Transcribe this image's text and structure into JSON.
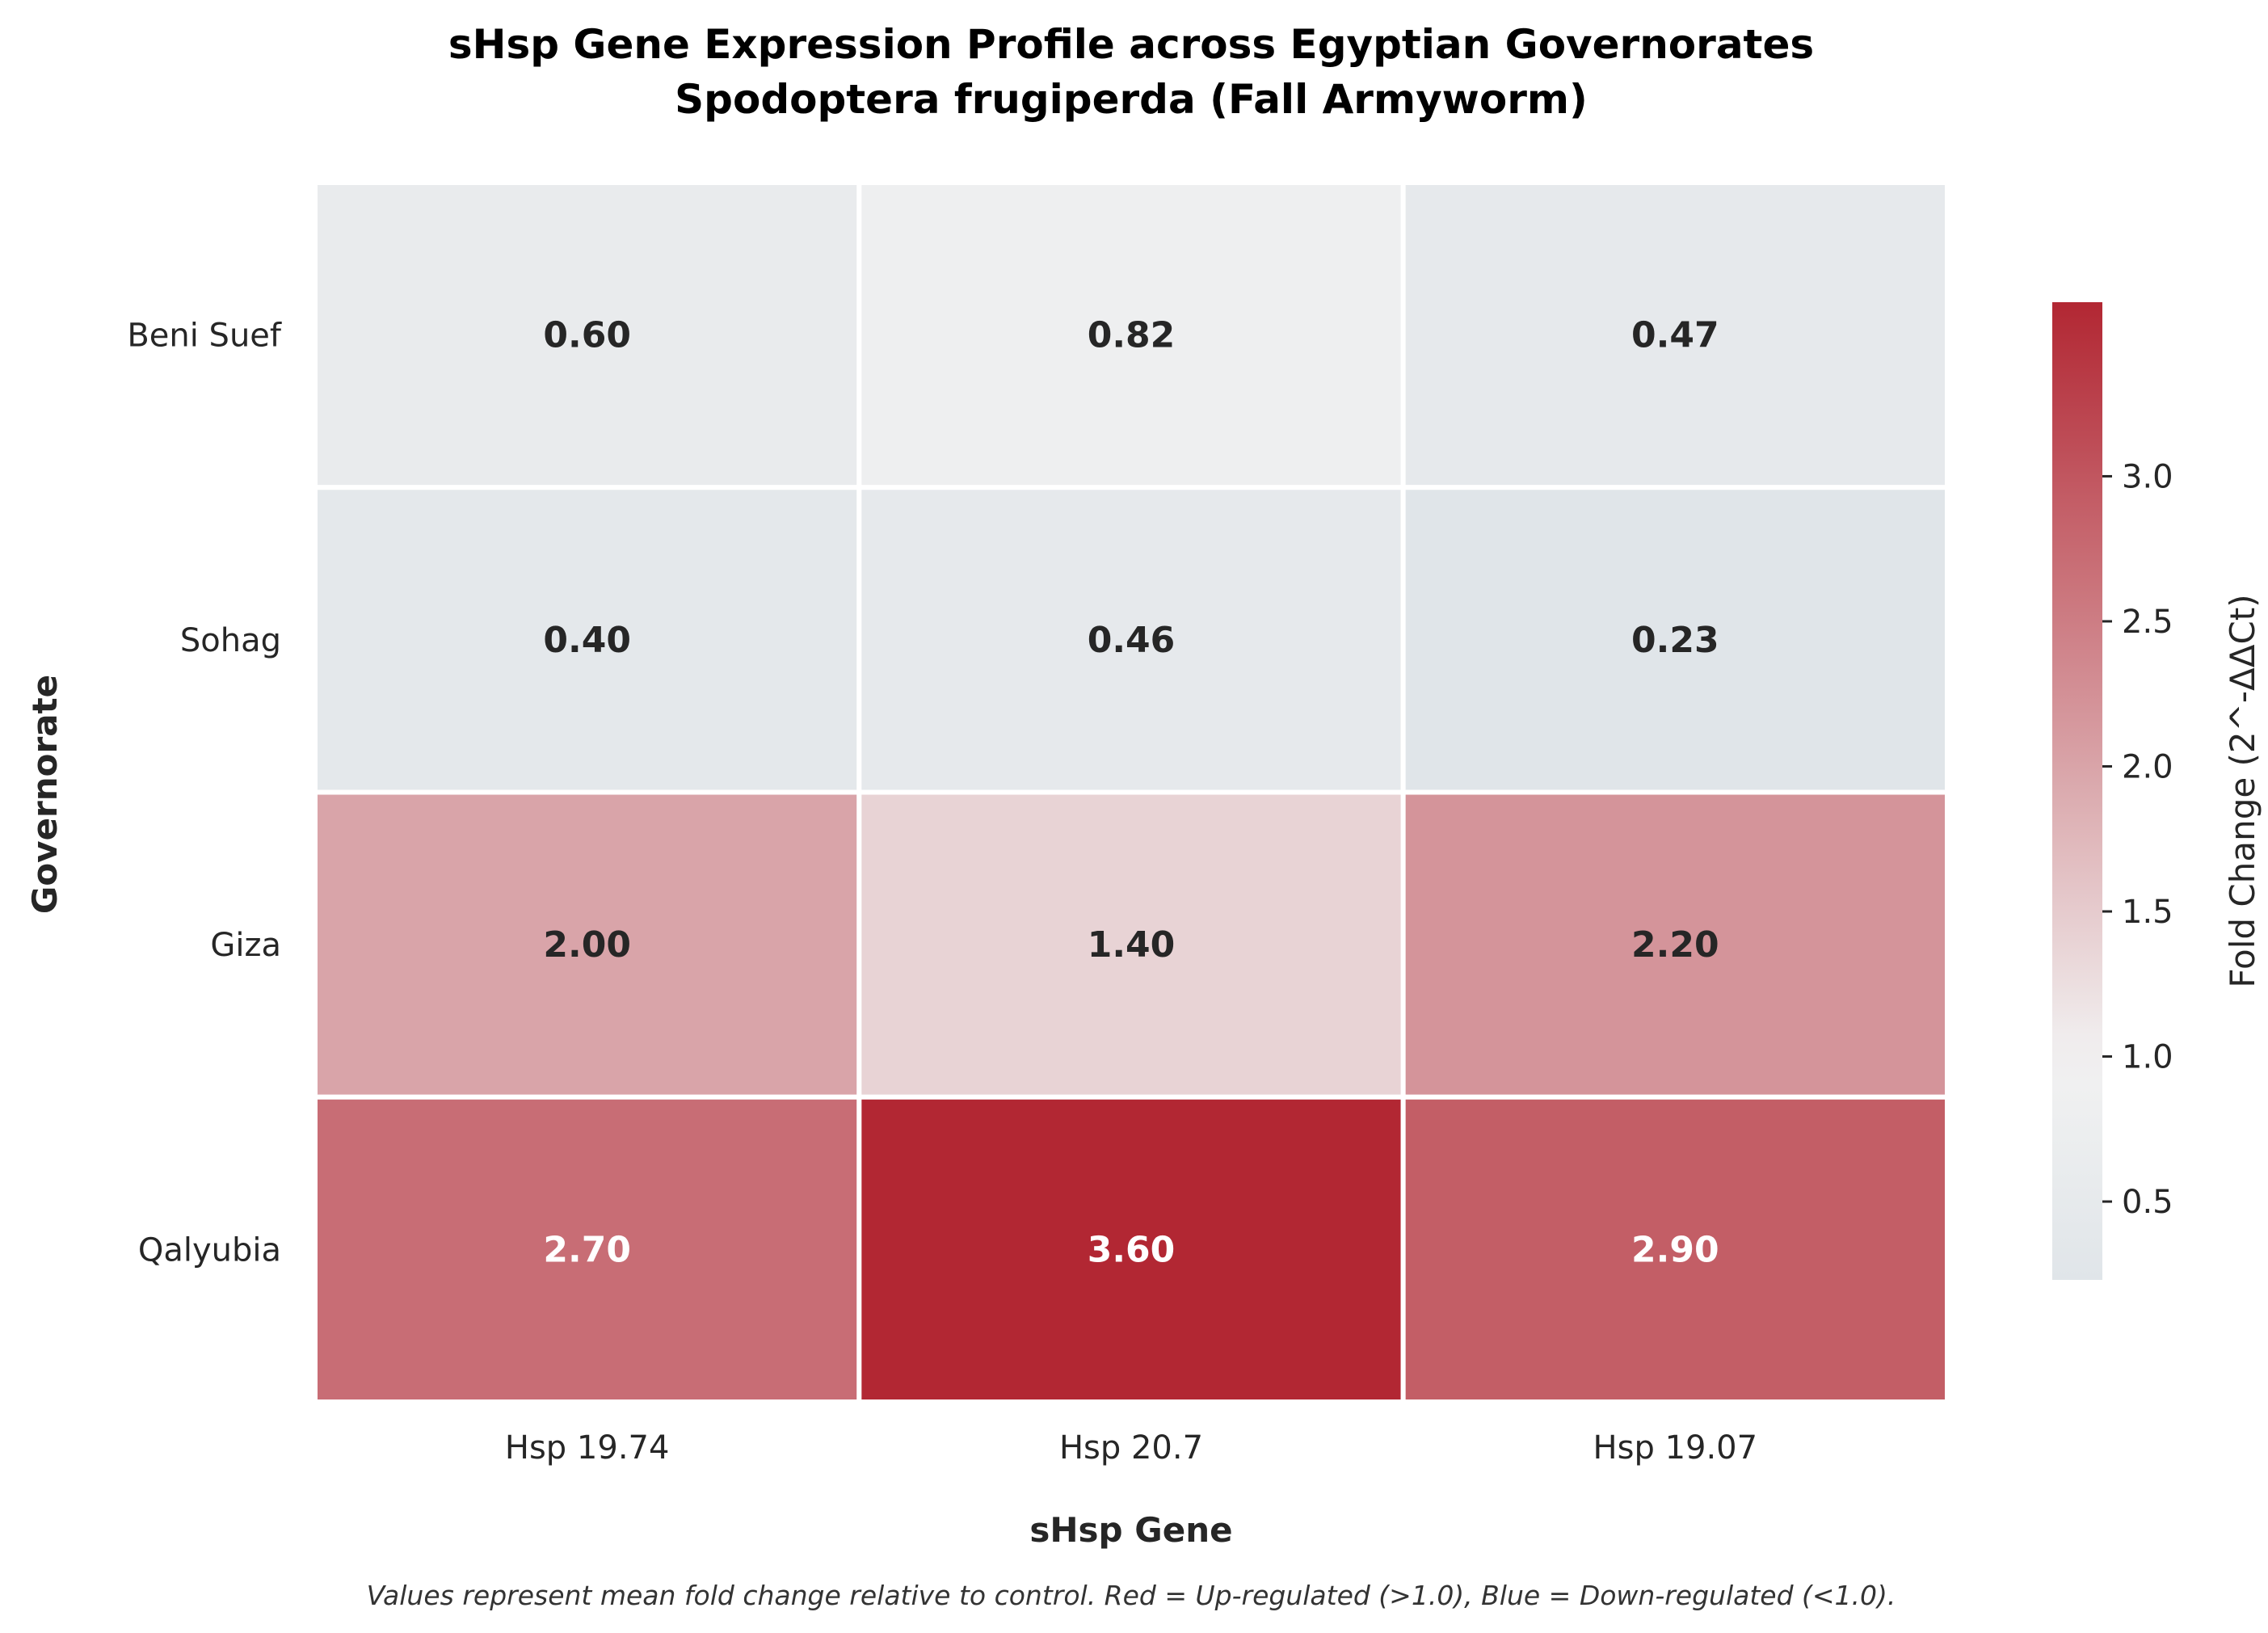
{
  "chart_data": {
    "type": "heatmap",
    "title": "sHsp Gene Expression Profile across Egyptian Governorates",
    "subtitle": "Spodoptera frugiperda (Fall Armyworm)",
    "xlabel": "sHsp Gene",
    "ylabel": "Governorate",
    "columns": [
      "Hsp 19.74",
      "Hsp 20.7",
      "Hsp 19.07"
    ],
    "rows": [
      "Beni Suef",
      "Sohag",
      "Giza",
      "Qalyubia"
    ],
    "values": [
      [
        0.6,
        0.82,
        0.47
      ],
      [
        0.4,
        0.46,
        0.23
      ],
      [
        2.0,
        1.4,
        2.2
      ],
      [
        2.7,
        3.6,
        2.9
      ]
    ],
    "value_labels": [
      [
        "0.60",
        "0.82",
        "0.47"
      ],
      [
        "0.40",
        "0.46",
        "0.23"
      ],
      [
        "2.00",
        "1.40",
        "2.20"
      ],
      [
        "2.70",
        "3.60",
        "2.90"
      ]
    ],
    "colorbar": {
      "label": "Fold Change (2^-ΔΔCt)",
      "range": [
        0.23,
        3.6
      ],
      "center": 1.0,
      "ticks": [
        0.5,
        1.0,
        1.5,
        2.0,
        2.5,
        3.0
      ],
      "tick_labels": [
        "0.5",
        "1.0",
        "1.5",
        "2.0",
        "2.5",
        "3.0"
      ]
    },
    "colors": {
      "low": "#b6c6d3",
      "mid": "#f2f2f2",
      "high": "#b22733"
    },
    "footnote": "Values represent mean fold change relative to control. Red = Up-regulated (>1.0), Blue = Down-regulated (<1.0)."
  }
}
